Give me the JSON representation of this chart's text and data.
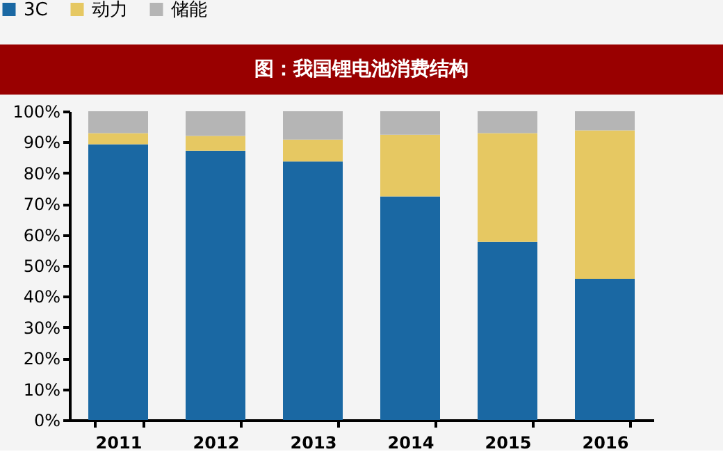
{
  "chart_data": {
    "type": "bar",
    "title": "图：我国锂电池消费结构",
    "stacked": true,
    "categories": [
      "2011",
      "2012",
      "2013",
      "2014",
      "2015",
      "2016"
    ],
    "series": [
      {
        "name": "3C",
        "color": "#1a68a3",
        "values": [
          89.3,
          87.2,
          83.7,
          72.4,
          57.7,
          45.7
        ]
      },
      {
        "name": "动力",
        "color": "#e6c862",
        "values": [
          3.6,
          4.8,
          7.1,
          20.0,
          35.2,
          48.1
        ]
      },
      {
        "name": "储能",
        "color": "#b5b5b5",
        "values": [
          7.1,
          8.0,
          9.2,
          7.6,
          7.1,
          6.2
        ]
      }
    ],
    "ylim": [
      0,
      100
    ],
    "yticks": [
      {
        "value": 0,
        "label": "0%"
      },
      {
        "value": 10,
        "label": "10%"
      },
      {
        "value": 20,
        "label": "20%"
      },
      {
        "value": 30,
        "label": "30%"
      },
      {
        "value": 40,
        "label": "40%"
      },
      {
        "value": 50,
        "label": "50%"
      },
      {
        "value": 60,
        "label": "60%"
      },
      {
        "value": 70,
        "label": "70%"
      },
      {
        "value": 80,
        "label": "80%"
      },
      {
        "value": 90,
        "label": "90%"
      },
      {
        "value": 100,
        "label": "100%"
      }
    ],
    "grid": false,
    "legend": "top"
  }
}
